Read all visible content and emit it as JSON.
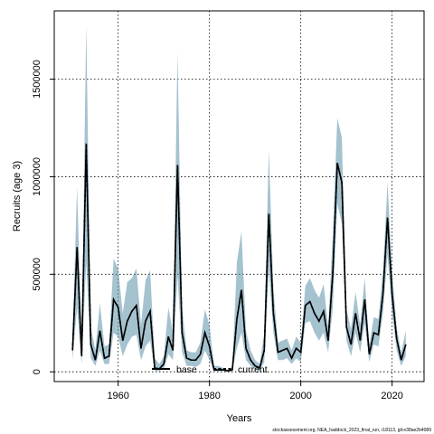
{
  "chart_data": {
    "type": "area",
    "xlabel": "Years",
    "ylabel": "Recruits (age 3)",
    "xlim": [
      1946,
      2027
    ],
    "ylim": [
      -50000,
      1850000
    ],
    "xticks": [
      1960,
      1980,
      2000,
      2020
    ],
    "yticks": [
      0,
      500000,
      1000000,
      1500000
    ],
    "grid": true,
    "legend_position": "bottom",
    "legend": [
      {
        "label": "base",
        "style": "solid"
      },
      {
        "label": "current",
        "style": "dashed"
      }
    ],
    "colors": {
      "band": "#5b8fa8",
      "band_opacity": "0.55",
      "base": "#000000",
      "current": "#000000",
      "grid": "#000000"
    },
    "years": [
      1950,
      1951,
      1952,
      1953,
      1954,
      1955,
      1956,
      1957,
      1958,
      1959,
      1960,
      1961,
      1962,
      1963,
      1964,
      1965,
      1966,
      1967,
      1968,
      1969,
      1970,
      1971,
      1972,
      1973,
      1974,
      1975,
      1976,
      1977,
      1978,
      1979,
      1980,
      1981,
      1982,
      1983,
      1984,
      1985,
      1986,
      1987,
      1988,
      1989,
      1990,
      1991,
      1992,
      1993,
      1994,
      1995,
      1996,
      1997,
      1998,
      1999,
      2000,
      2001,
      2002,
      2003,
      2004,
      2005,
      2006,
      2007,
      2008,
      2009,
      2010,
      2011,
      2012,
      2013,
      2014,
      2015,
      2016,
      2017,
      2018,
      2019,
      2020,
      2021,
      2022,
      2023
    ],
    "series": [
      {
        "name": "base",
        "values": [
          110000,
          640000,
          80000,
          1170000,
          140000,
          60000,
          210000,
          70000,
          80000,
          370000,
          330000,
          160000,
          260000,
          310000,
          340000,
          120000,
          260000,
          310000,
          20000,
          15000,
          40000,
          180000,
          110000,
          1060000,
          200000,
          70000,
          60000,
          60000,
          90000,
          200000,
          130000,
          10000,
          10000,
          10000,
          5000,
          10000,
          270000,
          420000,
          120000,
          60000,
          30000,
          20000,
          110000,
          810000,
          300000,
          100000,
          110000,
          120000,
          70000,
          120000,
          100000,
          340000,
          360000,
          300000,
          260000,
          310000,
          160000,
          500000,
          1070000,
          970000,
          230000,
          140000,
          300000,
          160000,
          370000,
          90000,
          200000,
          190000,
          400000,
          790000,
          400000,
          170000,
          60000,
          140000
        ]
      },
      {
        "name": "current",
        "values": [
          110000,
          630000,
          80000,
          1170000,
          140000,
          60000,
          210000,
          70000,
          80000,
          370000,
          330000,
          160000,
          260000,
          310000,
          340000,
          120000,
          260000,
          310000,
          20000,
          15000,
          40000,
          180000,
          110000,
          1060000,
          200000,
          70000,
          60000,
          60000,
          90000,
          200000,
          130000,
          10000,
          10000,
          10000,
          5000,
          10000,
          270000,
          420000,
          120000,
          60000,
          30000,
          20000,
          110000,
          810000,
          300000,
          100000,
          110000,
          120000,
          70000,
          120000,
          100000,
          340000,
          360000,
          300000,
          260000,
          310000,
          160000,
          500000,
          1070000,
          970000,
          230000,
          140000,
          300000,
          160000,
          370000,
          90000,
          200000,
          190000,
          400000,
          790000,
          400000,
          170000,
          60000,
          140000
        ]
      }
    ],
    "band_upper": [
      180000,
      950000,
      130000,
      1780000,
      230000,
      110000,
      350000,
      130000,
      140000,
      580000,
      530000,
      300000,
      460000,
      480000,
      530000,
      240000,
      470000,
      520000,
      70000,
      40000,
      80000,
      330000,
      200000,
      1640000,
      330000,
      110000,
      100000,
      100000,
      150000,
      320000,
      240000,
      30000,
      30000,
      20000,
      10000,
      25000,
      560000,
      720000,
      210000,
      110000,
      60000,
      40000,
      200000,
      1140000,
      430000,
      150000,
      160000,
      170000,
      110000,
      180000,
      150000,
      440000,
      480000,
      420000,
      380000,
      450000,
      230000,
      700000,
      1300000,
      1200000,
      320000,
      220000,
      410000,
      240000,
      480000,
      140000,
      280000,
      270000,
      520000,
      970000,
      520000,
      230000,
      100000,
      210000
    ],
    "band_lower": [
      60000,
      330000,
      40000,
      560000,
      70000,
      30000,
      110000,
      40000,
      40000,
      200000,
      180000,
      80000,
      140000,
      180000,
      190000,
      60000,
      130000,
      160000,
      5000,
      3000,
      15000,
      90000,
      60000,
      490000,
      100000,
      30000,
      30000,
      25000,
      40000,
      110000,
      60000,
      3000,
      3000,
      3000,
      1000,
      3000,
      120000,
      200000,
      60000,
      30000,
      10000,
      5000,
      50000,
      520000,
      200000,
      60000,
      60000,
      70000,
      40000,
      70000,
      50000,
      250000,
      260000,
      200000,
      160000,
      200000,
      100000,
      320000,
      860000,
      760000,
      160000,
      80000,
      200000,
      100000,
      250000,
      50000,
      140000,
      130000,
      300000,
      600000,
      300000,
      110000,
      30000,
      80000
    ],
    "footer": "stockassessment.org, NEA_haddock_2023_final_run, r18113, git:e38ae2b4089"
  }
}
